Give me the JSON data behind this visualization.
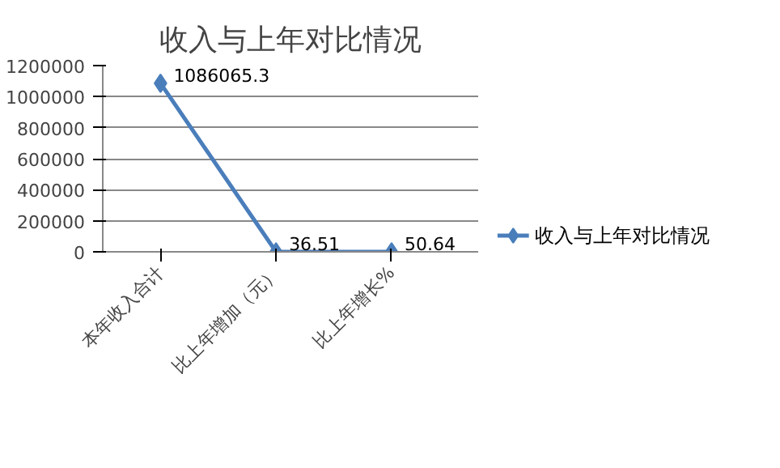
{
  "chart_data": {
    "type": "line",
    "title": "收入与上年对比情况",
    "categories": [
      "本年收入合计",
      "比上年增加（元）",
      "比上年增长%"
    ],
    "series": [
      {
        "name": "收入与上年对比情况",
        "color": "#4a7ebb",
        "values": [
          1086065.3,
          36.51,
          50.64
        ]
      }
    ],
    "ylim": [
      0,
      1200000
    ],
    "yticks": [
      0,
      200000,
      400000,
      600000,
      800000,
      1000000,
      1200000
    ],
    "grid": "y",
    "legend": "right",
    "marker": "diamond",
    "line_style": "solid",
    "data_labels": true
  }
}
